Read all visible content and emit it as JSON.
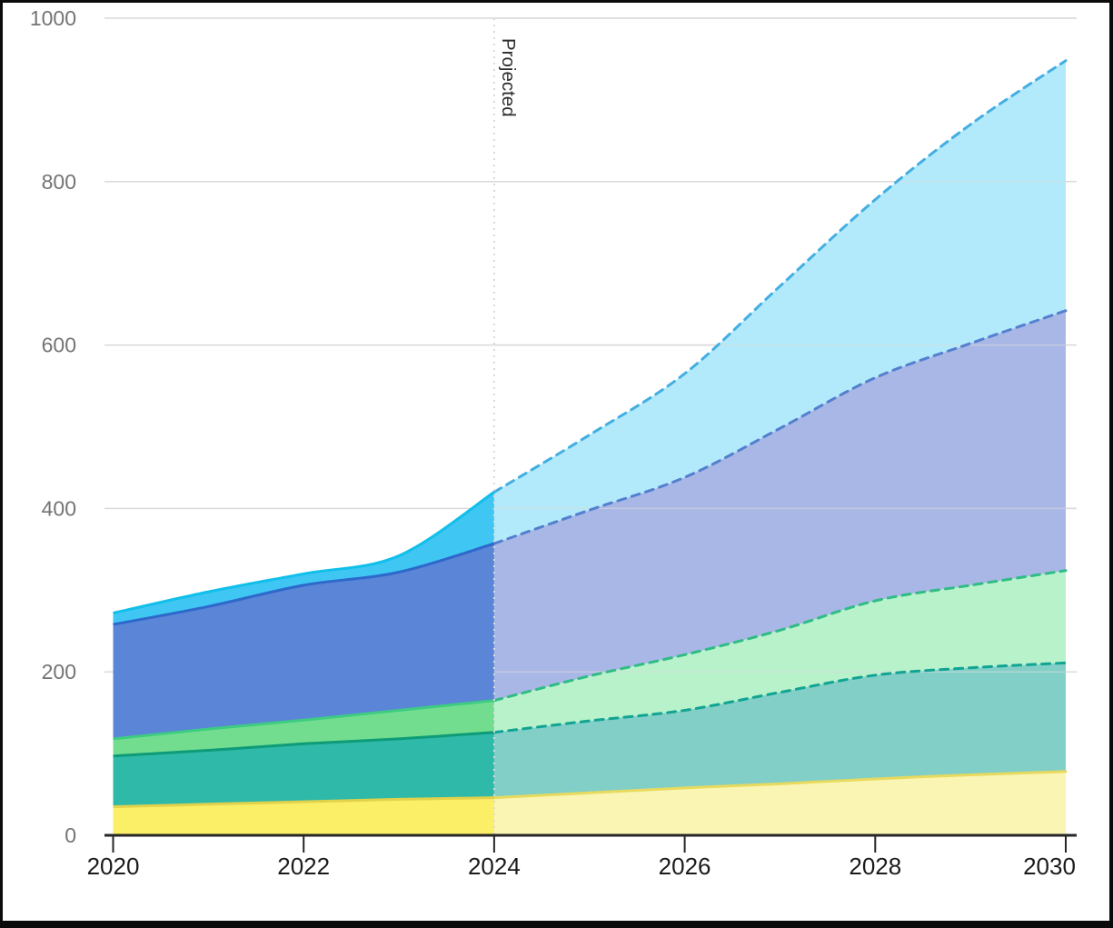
{
  "chart_data": {
    "type": "area",
    "stacked": true,
    "title": "",
    "xlabel": "",
    "ylabel": "",
    "xlim": [
      2020,
      2030
    ],
    "ylim": [
      0,
      1000
    ],
    "x_ticks": [
      "2020",
      "2022",
      "2024",
      "2026",
      "2028",
      "2030"
    ],
    "x_tick_values": [
      2020,
      2022,
      2024,
      2026,
      2028,
      2030
    ],
    "y_ticks": [
      "0",
      "200",
      "400",
      "600",
      "800",
      "1000"
    ],
    "y_tick_values": [
      0,
      200,
      400,
      600,
      800,
      1000
    ],
    "grid": "horizontal",
    "legend": "none",
    "values_are": "cumulative stack tops per series",
    "historical_years": [
      2020,
      2021,
      2022,
      2023,
      2024
    ],
    "projected_years": [
      2024,
      2025,
      2026,
      2027,
      2028,
      2029,
      2030
    ],
    "series": [
      {
        "name": "series-yellow-bottom",
        "cumulative_historical": [
          35,
          38,
          41,
          44,
          46
        ],
        "cumulative_projected": [
          46,
          52,
          58,
          63,
          69,
          74,
          78
        ],
        "fill": "#FBEF68",
        "fill_projected": "#FAF5B2",
        "line": "#E2D14B",
        "line_projected": "#E7DA5E",
        "projected_line_dashed": false
      },
      {
        "name": "series-teal",
        "cumulative_historical": [
          97,
          104,
          112,
          118,
          126
        ],
        "cumulative_projected": [
          126,
          140,
          153,
          175,
          196,
          205,
          211
        ],
        "fill": "#2FB9A9",
        "fill_projected": "#82CFC7",
        "line": "#0E9B77",
        "line_projected": "#11A493",
        "projected_line_dashed": true
      },
      {
        "name": "series-light-green",
        "cumulative_historical": [
          118,
          130,
          141,
          153,
          165
        ],
        "cumulative_projected": [
          165,
          195,
          221,
          251,
          287,
          306,
          324
        ],
        "fill": "#72DD8F",
        "fill_projected": "#B7F2CB",
        "line": "#3DCC82",
        "line_projected": "#2FBC85",
        "projected_line_dashed": true
      },
      {
        "name": "series-blue",
        "cumulative_historical": [
          258,
          280,
          306,
          322,
          357
        ],
        "cumulative_projected": [
          357,
          398,
          438,
          498,
          560,
          602,
          642
        ],
        "fill": "#5B85D6",
        "fill_projected": "#A9B7E6",
        "line": "#2D68CB",
        "line_projected": "#5380CE",
        "projected_line_dashed": true
      },
      {
        "name": "series-cyan-top",
        "cumulative_historical": [
          272,
          298,
          320,
          342,
          420
        ],
        "cumulative_projected": [
          420,
          490,
          565,
          672,
          778,
          870,
          948
        ],
        "fill": "#3FC6F2",
        "fill_projected": "#B2EAFB",
        "line": "#10BFEA",
        "line_projected": "#44AEE2",
        "projected_line_dashed": true
      }
    ],
    "annotation": {
      "label": "Projected",
      "x": 2024,
      "style": "vertical-dotted-line, rotated label"
    },
    "colors": {
      "grid": "#DADADA",
      "axis": "#262626",
      "x_tick_label": "#1B1B1B",
      "y_tick_label": "#747474",
      "annotation_text": "#2D2D2D",
      "divider_dotted": "#D9D9D9",
      "background": "#FFFFFF",
      "frame_border": "#0B0B0B"
    }
  }
}
